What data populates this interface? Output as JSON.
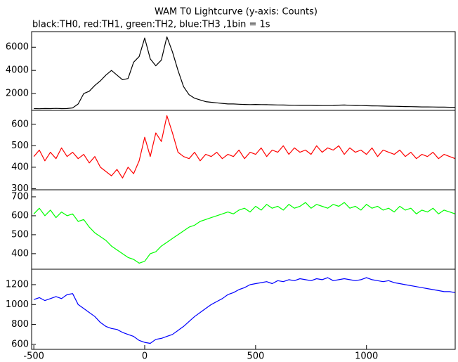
{
  "title": "WAM T0 Lightcurve (y-axis: Counts)",
  "subtitle": "black:TH0, red:TH1, green:TH2, blue:TH3 ,1bin = 1s",
  "chart_data": [
    {
      "type": "line",
      "xlim": [
        -510,
        1400
      ],
      "ylim": [
        550,
        7350
      ],
      "yticks": [
        2000,
        4000,
        6000
      ],
      "x": [
        -500,
        -475,
        -450,
        -425,
        -400,
        -375,
        -350,
        -325,
        -300,
        -275,
        -250,
        -225,
        -200,
        -175,
        -150,
        -125,
        -100,
        -75,
        -50,
        -25,
        0,
        25,
        50,
        75,
        100,
        125,
        150,
        175,
        200,
        225,
        250,
        275,
        300,
        325,
        350,
        375,
        400,
        425,
        450,
        475,
        500,
        525,
        550,
        575,
        600,
        625,
        650,
        675,
        700,
        725,
        750,
        775,
        800,
        825,
        850,
        875,
        900,
        925,
        950,
        975,
        1000,
        1025,
        1050,
        1075,
        1100,
        1125,
        1150,
        1175,
        1200,
        1225,
        1250,
        1275,
        1300,
        1325,
        1350,
        1375,
        1400
      ],
      "series": [
        {
          "color": "#000000",
          "values": [
            700,
            690,
            710,
            700,
            720,
            700,
            710,
            760,
            1100,
            2000,
            2200,
            2700,
            3100,
            3600,
            4000,
            3600,
            3200,
            3300,
            4700,
            5200,
            6800,
            5000,
            4400,
            4900,
            6900,
            5600,
            4000,
            2600,
            1900,
            1600,
            1450,
            1300,
            1250,
            1200,
            1150,
            1100,
            1100,
            1080,
            1060,
            1050,
            1060,
            1050,
            1040,
            1030,
            1020,
            1010,
            1000,
            990,
            980,
            990,
            980,
            970,
            960,
            960,
            970,
            1000,
            1010,
            990,
            970,
            960,
            950,
            940,
            930,
            920,
            910,
            900,
            890,
            880,
            870,
            860,
            850,
            850,
            840,
            830,
            830,
            820,
            820
          ]
        }
      ]
    },
    {
      "type": "line",
      "xlim": [
        -510,
        1400
      ],
      "ylim": [
        295,
        665
      ],
      "yticks": [
        300,
        400,
        500,
        600
      ],
      "x": [
        -500,
        -475,
        -450,
        -425,
        -400,
        -375,
        -350,
        -325,
        -300,
        -275,
        -250,
        -225,
        -200,
        -175,
        -150,
        -125,
        -100,
        -75,
        -50,
        -25,
        0,
        25,
        50,
        75,
        100,
        125,
        150,
        175,
        200,
        225,
        250,
        275,
        300,
        325,
        350,
        375,
        400,
        425,
        450,
        475,
        500,
        525,
        550,
        575,
        600,
        625,
        650,
        675,
        700,
        725,
        750,
        775,
        800,
        825,
        850,
        875,
        900,
        925,
        950,
        975,
        1000,
        1025,
        1050,
        1075,
        1100,
        1125,
        1150,
        1175,
        1200,
        1225,
        1250,
        1275,
        1300,
        1325,
        1350,
        1375,
        1400
      ],
      "series": [
        {
          "color": "#ff0000",
          "values": [
            450,
            480,
            430,
            470,
            440,
            490,
            450,
            470,
            440,
            460,
            420,
            450,
            400,
            380,
            360,
            390,
            350,
            400,
            370,
            430,
            540,
            450,
            560,
            520,
            640,
            560,
            470,
            450,
            440,
            470,
            430,
            460,
            450,
            470,
            440,
            460,
            450,
            480,
            440,
            470,
            460,
            490,
            450,
            480,
            470,
            500,
            460,
            490,
            470,
            480,
            460,
            500,
            470,
            490,
            480,
            500,
            460,
            490,
            470,
            480,
            460,
            490,
            450,
            480,
            470,
            460,
            480,
            450,
            470,
            440,
            460,
            450,
            470,
            440,
            460,
            450,
            440
          ]
        }
      ]
    },
    {
      "type": "line",
      "xlim": [
        -510,
        1400
      ],
      "ylim": [
        318,
        737
      ],
      "yticks": [
        400,
        500,
        600,
        700
      ],
      "x": [
        -500,
        -475,
        -450,
        -425,
        -400,
        -375,
        -350,
        -325,
        -300,
        -275,
        -250,
        -225,
        -200,
        -175,
        -150,
        -125,
        -100,
        -75,
        -50,
        -25,
        0,
        25,
        50,
        75,
        100,
        125,
        150,
        175,
        200,
        225,
        250,
        275,
        300,
        325,
        350,
        375,
        400,
        425,
        450,
        475,
        500,
        525,
        550,
        575,
        600,
        625,
        650,
        675,
        700,
        725,
        750,
        775,
        800,
        825,
        850,
        875,
        900,
        925,
        950,
        975,
        1000,
        1025,
        1050,
        1075,
        1100,
        1125,
        1150,
        1175,
        1200,
        1225,
        1250,
        1275,
        1300,
        1325,
        1350,
        1375,
        1400
      ],
      "series": [
        {
          "color": "#00ff00",
          "values": [
            610,
            640,
            600,
            630,
            590,
            620,
            600,
            610,
            570,
            580,
            540,
            510,
            490,
            470,
            440,
            420,
            400,
            380,
            370,
            350,
            360,
            400,
            410,
            440,
            460,
            480,
            500,
            520,
            540,
            550,
            570,
            580,
            590,
            600,
            610,
            620,
            610,
            630,
            640,
            620,
            650,
            630,
            660,
            640,
            650,
            630,
            660,
            640,
            650,
            670,
            640,
            660,
            650,
            640,
            660,
            650,
            670,
            640,
            650,
            630,
            660,
            640,
            650,
            630,
            640,
            620,
            650,
            630,
            640,
            610,
            630,
            620,
            640,
            610,
            630,
            620,
            610
          ]
        }
      ]
    },
    {
      "type": "line",
      "xlim": [
        -510,
        1400
      ],
      "ylim": [
        550,
        1355
      ],
      "yticks": [
        600,
        800,
        1000,
        1200
      ],
      "xticks": [
        -500,
        0,
        500,
        1000
      ],
      "x": [
        -500,
        -475,
        -450,
        -425,
        -400,
        -375,
        -350,
        -325,
        -300,
        -275,
        -250,
        -225,
        -200,
        -175,
        -150,
        -125,
        -100,
        -75,
        -50,
        -25,
        0,
        25,
        50,
        75,
        100,
        125,
        150,
        175,
        200,
        225,
        250,
        275,
        300,
        325,
        350,
        375,
        400,
        425,
        450,
        475,
        500,
        525,
        550,
        575,
        600,
        625,
        650,
        675,
        700,
        725,
        750,
        775,
        800,
        825,
        850,
        875,
        900,
        925,
        950,
        975,
        1000,
        1025,
        1050,
        1075,
        1100,
        1125,
        1150,
        1175,
        1200,
        1225,
        1250,
        1275,
        1300,
        1325,
        1350,
        1375,
        1400
      ],
      "series": [
        {
          "color": "#0000ff",
          "values": [
            1050,
            1070,
            1040,
            1060,
            1080,
            1060,
            1100,
            1110,
            1000,
            960,
            920,
            880,
            820,
            780,
            760,
            750,
            720,
            700,
            680,
            640,
            620,
            610,
            650,
            660,
            680,
            700,
            740,
            780,
            830,
            880,
            920,
            960,
            1000,
            1030,
            1060,
            1100,
            1120,
            1150,
            1170,
            1200,
            1210,
            1220,
            1230,
            1210,
            1240,
            1230,
            1250,
            1240,
            1260,
            1250,
            1240,
            1260,
            1250,
            1270,
            1240,
            1250,
            1260,
            1250,
            1240,
            1250,
            1270,
            1250,
            1240,
            1230,
            1240,
            1220,
            1210,
            1200,
            1190,
            1180,
            1170,
            1160,
            1150,
            1140,
            1130,
            1130,
            1120
          ]
        }
      ]
    }
  ]
}
